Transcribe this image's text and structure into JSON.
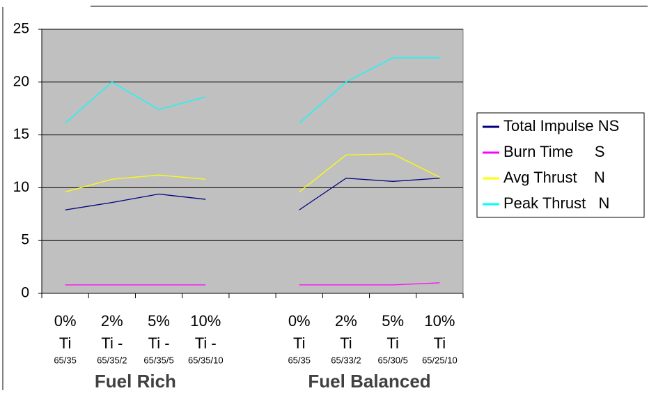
{
  "chart_data": {
    "type": "line",
    "categories": [
      [
        "0%",
        "Ti",
        "65/35"
      ],
      [
        "2%",
        "Ti -",
        "65/35/2"
      ],
      [
        "5%",
        "Ti -",
        "65/35/5"
      ],
      [
        "10%",
        "Ti -",
        "65/35/10"
      ],
      null,
      [
        "0%",
        "Ti",
        "65/35"
      ],
      [
        "2%",
        "Ti",
        "65/33/2"
      ],
      [
        "5%",
        "Ti",
        "65/30/5"
      ],
      [
        "10%",
        "Ti",
        "65/25/10"
      ]
    ],
    "groups": [
      "Fuel Rich",
      "Fuel Balanced"
    ],
    "series": [
      {
        "name": "Total Impulse NS",
        "color": "#000080",
        "values": [
          7.9,
          8.6,
          9.4,
          8.9,
          null,
          7.9,
          10.9,
          10.6,
          10.9
        ]
      },
      {
        "name": "Burn Time     S",
        "color": "#ff00ff",
        "values": [
          0.8,
          0.8,
          0.8,
          0.8,
          null,
          0.8,
          0.8,
          0.8,
          1.0
        ]
      },
      {
        "name": "Avg Thrust    N",
        "color": "#ffff00",
        "values": [
          9.6,
          10.8,
          11.2,
          10.8,
          null,
          9.6,
          13.1,
          13.2,
          11.0
        ]
      },
      {
        "name": "Peak Thrust   N",
        "color": "#00ffff",
        "values": [
          16.1,
          20.0,
          17.4,
          18.6,
          null,
          16.1,
          20.0,
          22.3,
          22.3
        ]
      }
    ],
    "ylim": [
      0,
      25
    ],
    "yticks": [
      0,
      5,
      10,
      15,
      20,
      25
    ],
    "grid": true,
    "legend": "right"
  }
}
